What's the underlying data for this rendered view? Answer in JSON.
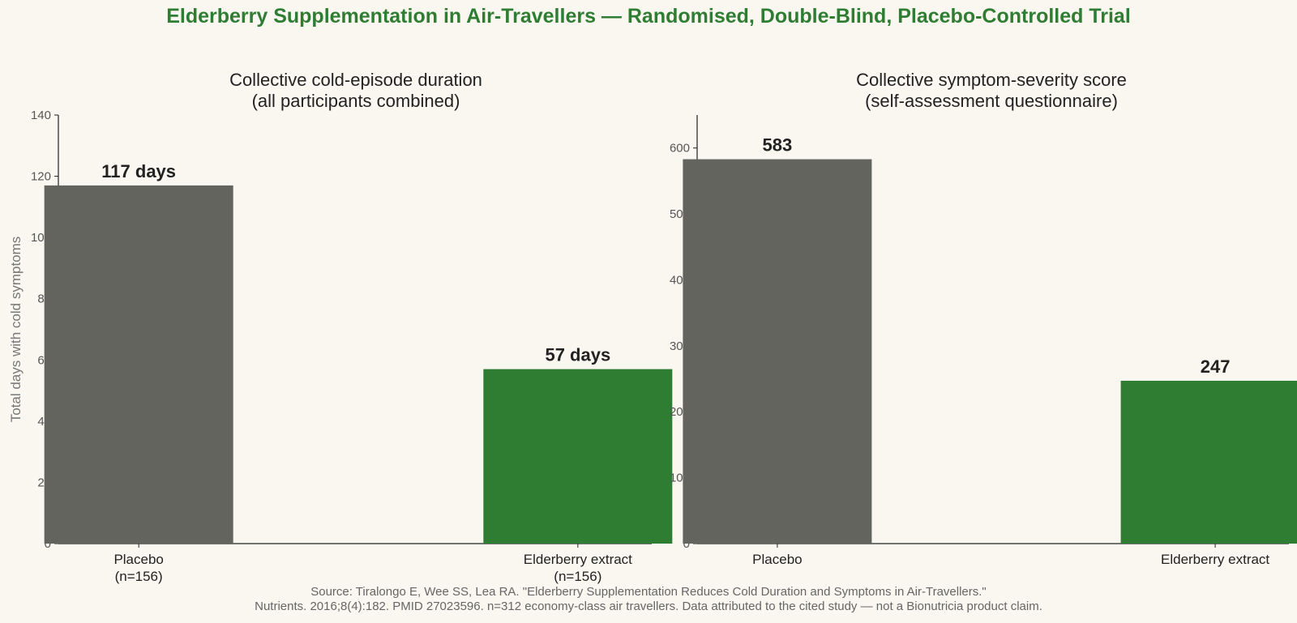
{
  "title": "Elderberry Supplementation in Air-Travellers — Randomised, Double-Blind, Placebo-Controlled Trial",
  "colors": {
    "placebo": "#63645e",
    "treatment": "#2e7d32",
    "title": "#2e7d32"
  },
  "chart_data": [
    {
      "type": "bar",
      "title": "Collective cold-episode duration",
      "subtitle": "(all participants combined)",
      "ylabel": "Total days with cold symptoms",
      "ylim": [
        0,
        140
      ],
      "yticks": [
        0,
        20,
        40,
        60,
        80,
        100,
        120,
        140
      ],
      "categories": [
        "Placebo",
        "Elderberry extract"
      ],
      "category_sublabels": [
        "(n=156)",
        "(n=156)"
      ],
      "values": [
        117,
        57
      ],
      "value_labels": [
        "117 days",
        "57 days"
      ],
      "bar_colors": [
        "#63645e",
        "#2e7d32"
      ]
    },
    {
      "type": "bar",
      "title": "Collective symptom-severity score",
      "subtitle": "(self-assessment questionnaire)",
      "ylabel": "",
      "ylim": [
        0,
        650
      ],
      "yticks": [
        0,
        100,
        200,
        300,
        400,
        500,
        600
      ],
      "categories": [
        "Placebo",
        "Elderberry extract"
      ],
      "category_sublabels": [
        "",
        ""
      ],
      "values": [
        583,
        247
      ],
      "value_labels": [
        "583",
        "247"
      ],
      "bar_colors": [
        "#63645e",
        "#2e7d32"
      ]
    }
  ],
  "footer": {
    "line1": "Source: Tiralongo E, Wee SS, Lea RA. \"Elderberry Supplementation Reduces Cold Duration and Symptoms in Air-Travellers.\"",
    "line2": "Nutrients. 2016;8(4):182. PMID 27023596. n=312 economy-class air travellers. Data attributed to the cited study — not a Bionutricia product claim."
  }
}
